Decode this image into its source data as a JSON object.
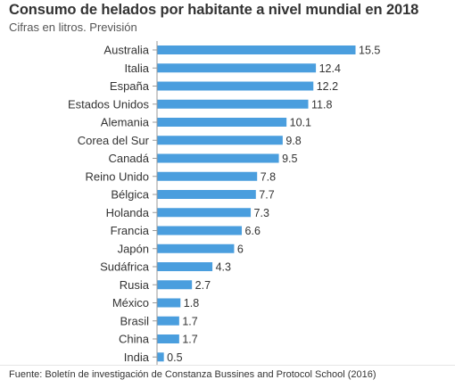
{
  "header": {
    "title": "Consumo de helados por habitante a nivel mundial en 2018",
    "subtitle": "Cifras en litros. Previsión"
  },
  "source": "Fuente: Boletín de investigación de Constanza Bussines and Protocol School (2016)",
  "colors": {
    "bar": "#4a9ede",
    "axis": "#999999",
    "label": "#333333"
  },
  "chart_data": {
    "type": "bar",
    "orientation": "horizontal",
    "title": "Consumo de helados por habitante a nivel mundial en 2018",
    "subtitle": "Cifras en litros. Previsión",
    "categories": [
      "Australia",
      "Italia",
      "España",
      "Estados Unidos",
      "Alemania",
      "Corea del Sur",
      "Canadá",
      "Reino Unido",
      "Bélgica",
      "Holanda",
      "Francia",
      "Japón",
      "Sudáfrica",
      "Rusia",
      "México",
      "Brasil",
      "China",
      "India"
    ],
    "values": [
      15.5,
      12.4,
      12.2,
      11.8,
      10.1,
      9.8,
      9.5,
      7.8,
      7.7,
      7.3,
      6.6,
      6,
      4.3,
      2.7,
      1.8,
      1.7,
      1.7,
      0.5
    ],
    "value_labels": [
      "15.5",
      "12.4",
      "12.2",
      "11.8",
      "10.1",
      "9.8",
      "9.5",
      "7.8",
      "7.7",
      "7.3",
      "6.6",
      "6",
      "4.3",
      "2.7",
      "1.8",
      "1.7",
      "1.7",
      "0.5"
    ],
    "xlim": [
      0,
      15.5
    ],
    "grid": false,
    "legend": "none"
  }
}
